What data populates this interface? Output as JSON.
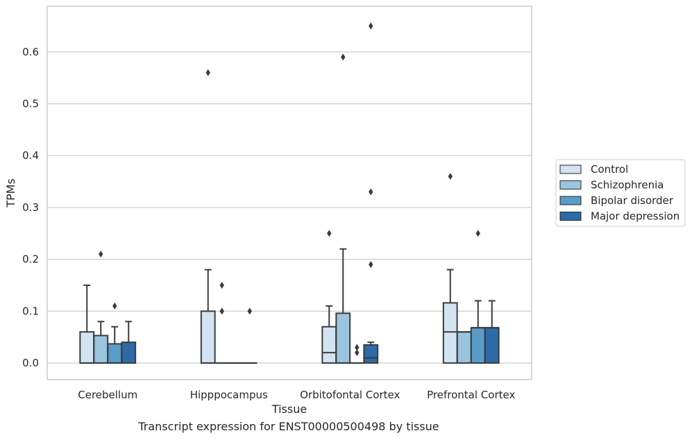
{
  "chart_data": {
    "type": "boxplot",
    "xlabel": "Tissue",
    "ylabel": "TPMs",
    "ylim": [
      -0.032,
      0.688
    ],
    "yticks": [
      "0.0",
      "0.1",
      "0.2",
      "0.3",
      "0.4",
      "0.5",
      "0.6"
    ],
    "categories": [
      "Cerebellum",
      "Hipppocampus",
      "Orbitofontal Cortex",
      "Prefrontal Cortex"
    ],
    "grid": "horizontal",
    "legend_position": "right",
    "series": [
      {
        "name": "Control",
        "color": "#d3e3f2",
        "boxes": [
          {
            "q1": 0.0,
            "median": 0.0,
            "q3": 0.06,
            "whisker_low": 0.0,
            "whisker_high": 0.15,
            "outliers": []
          },
          {
            "q1": 0.0,
            "median": 0.0,
            "q3": 0.1,
            "whisker_low": 0.0,
            "whisker_high": 0.18,
            "outliers": [
              0.56
            ]
          },
          {
            "q1": 0.0,
            "median": 0.02,
            "q3": 0.07,
            "whisker_low": 0.0,
            "whisker_high": 0.11,
            "outliers": [
              0.25
            ]
          },
          {
            "q1": 0.0,
            "median": 0.06,
            "q3": 0.116,
            "whisker_low": 0.0,
            "whisker_high": 0.18,
            "outliers": [
              0.36
            ]
          }
        ]
      },
      {
        "name": "Schizophrenia",
        "color": "#9bc5df",
        "boxes": [
          {
            "q1": 0.0,
            "median": 0.0,
            "q3": 0.053,
            "whisker_low": 0.0,
            "whisker_high": 0.08,
            "outliers": [
              0.21
            ]
          },
          {
            "q1": 0.0,
            "median": 0.0,
            "q3": 0.0,
            "whisker_low": 0.0,
            "whisker_high": 0.0,
            "outliers": [
              0.1,
              0.15
            ]
          },
          {
            "q1": 0.0,
            "median": 0.0,
            "q3": 0.096,
            "whisker_low": 0.0,
            "whisker_high": 0.22,
            "outliers": [
              0.59
            ]
          },
          {
            "q1": 0.0,
            "median": 0.06,
            "q3": 0.06,
            "whisker_low": 0.0,
            "whisker_high": 0.06,
            "outliers": []
          }
        ]
      },
      {
        "name": "Bipolar disorder",
        "color": "#5a9cc9",
        "boxes": [
          {
            "q1": 0.0,
            "median": 0.0,
            "q3": 0.037,
            "whisker_low": 0.0,
            "whisker_high": 0.07,
            "outliers": [
              0.11
            ]
          },
          {
            "q1": 0.0,
            "median": 0.0,
            "q3": 0.0,
            "whisker_low": 0.0,
            "whisker_high": 0.0,
            "outliers": []
          },
          {
            "q1": 0.0,
            "median": 0.0,
            "q3": 0.0,
            "whisker_low": 0.0,
            "whisker_high": 0.0,
            "outliers": [
              0.02,
              0.03
            ]
          },
          {
            "q1": 0.0,
            "median": 0.068,
            "q3": 0.068,
            "whisker_low": 0.0,
            "whisker_high": 0.12,
            "outliers": [
              0.25
            ]
          }
        ]
      },
      {
        "name": "Major depression",
        "color": "#2c6aa8",
        "boxes": [
          {
            "q1": 0.0,
            "median": 0.0,
            "q3": 0.04,
            "whisker_low": 0.0,
            "whisker_high": 0.08,
            "outliers": []
          },
          {
            "q1": 0.0,
            "median": 0.0,
            "q3": 0.0,
            "whisker_low": 0.0,
            "whisker_high": 0.0,
            "outliers": [
              0.1
            ]
          },
          {
            "q1": 0.0,
            "median": 0.01,
            "q3": 0.035,
            "whisker_low": 0.0,
            "whisker_high": 0.04,
            "outliers": [
              0.19,
              0.33,
              0.65
            ]
          },
          {
            "q1": 0.0,
            "median": 0.068,
            "q3": 0.068,
            "whisker_low": 0.0,
            "whisker_high": 0.12,
            "outliers": []
          }
        ]
      }
    ]
  },
  "caption": "Transcript expression for ENST00000500498 by tissue"
}
